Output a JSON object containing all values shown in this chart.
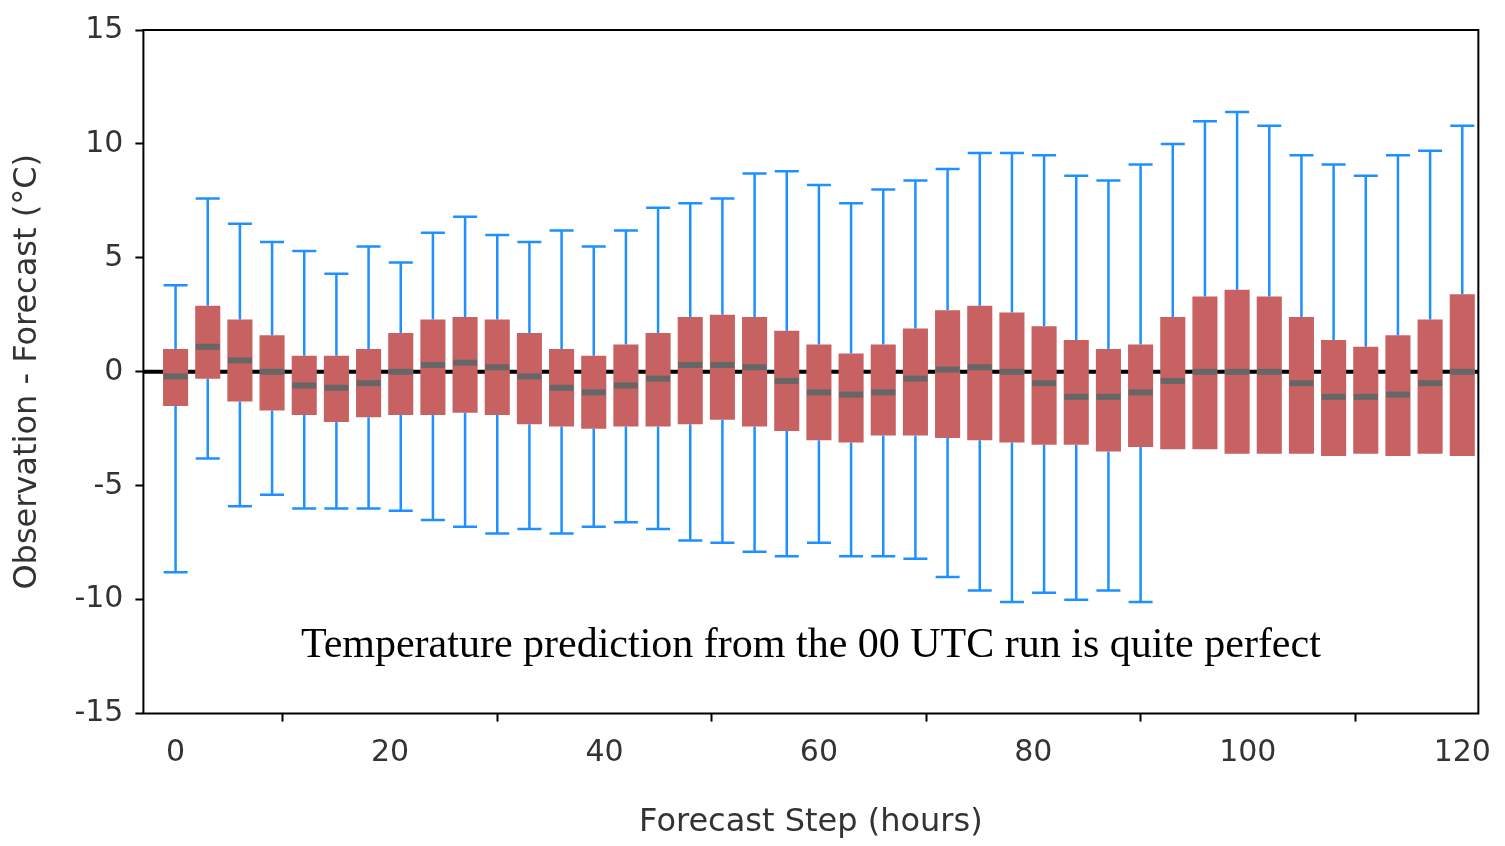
{
  "chart_data": {
    "type": "box",
    "xlabel": "Forecast Step (hours)",
    "ylabel": "Observation - Forecast (°C)",
    "x": [
      0,
      3,
      6,
      9,
      12,
      15,
      18,
      21,
      24,
      27,
      30,
      33,
      36,
      39,
      42,
      45,
      48,
      51,
      54,
      57,
      60,
      63,
      66,
      69,
      72,
      75,
      78,
      81,
      84,
      87,
      90,
      93,
      96,
      99,
      102,
      105,
      108,
      111,
      114,
      117,
      120
    ],
    "xlim": [
      -3,
      121.5
    ],
    "xticks": [
      0,
      20,
      40,
      60,
      80,
      100,
      120
    ],
    "ylim": [
      -15,
      15
    ],
    "yticks": [
      -15,
      -10,
      -5,
      0,
      5,
      10,
      15
    ],
    "color": "#c86262",
    "legend": false,
    "ref_lines": [
      {
        "axis": "y",
        "value": 0,
        "color": "#000000"
      }
    ],
    "annotations": [
      "Temperature prediction from the 00 UTC run is quite perfect"
    ],
    "boxes": [
      {
        "low": -8.8,
        "q1": -1.5,
        "median": -0.2,
        "q3": 1.0,
        "high": 3.8
      },
      {
        "low": -3.8,
        "q1": -0.3,
        "median": 1.1,
        "q3": 2.9,
        "high": 7.6
      },
      {
        "low": -5.9,
        "q1": -1.3,
        "median": 0.5,
        "q3": 2.3,
        "high": 6.5
      },
      {
        "low": -5.4,
        "q1": -1.7,
        "median": 0,
        "q3": 1.6,
        "high": 5.7
      },
      {
        "low": -6.0,
        "q1": -1.9,
        "median": -0.6,
        "q3": 0.7,
        "high": 5.3
      },
      {
        "low": -6.0,
        "q1": -2.2,
        "median": -0.7,
        "q3": 0.7,
        "high": 4.3
      },
      {
        "low": -6.0,
        "q1": -2.0,
        "median": -0.5,
        "q3": 1.0,
        "high": 5.5
      },
      {
        "low": -6.1,
        "q1": -1.9,
        "median": 0,
        "q3": 1.7,
        "high": 4.8
      },
      {
        "low": -6.5,
        "q1": -1.9,
        "median": 0.3,
        "q3": 2.3,
        "high": 6.1
      },
      {
        "low": -6.8,
        "q1": -1.8,
        "median": 0.4,
        "q3": 2.4,
        "high": 6.8
      },
      {
        "low": -7.1,
        "q1": -1.9,
        "median": 0.2,
        "q3": 2.3,
        "high": 6.0
      },
      {
        "low": -6.9,
        "q1": -2.3,
        "median": -0.2,
        "q3": 1.7,
        "high": 5.7
      },
      {
        "low": -7.1,
        "q1": -2.4,
        "median": -0.7,
        "q3": 1.0,
        "high": 6.2
      },
      {
        "low": -6.8,
        "q1": -2.5,
        "median": -0.9,
        "q3": 0.7,
        "high": 5.5
      },
      {
        "low": -6.6,
        "q1": -2.4,
        "median": -0.6,
        "q3": 1.2,
        "high": 6.2
      },
      {
        "low": -6.9,
        "q1": -2.4,
        "median": -0.3,
        "q3": 1.7,
        "high": 7.2
      },
      {
        "low": -7.4,
        "q1": -2.3,
        "median": 0.3,
        "q3": 2.4,
        "high": 7.4
      },
      {
        "low": -7.5,
        "q1": -2.1,
        "median": 0.3,
        "q3": 2.5,
        "high": 7.6
      },
      {
        "low": -7.9,
        "q1": -2.4,
        "median": 0.2,
        "q3": 2.4,
        "high": 8.7
      },
      {
        "low": -8.1,
        "q1": -2.6,
        "median": -0.4,
        "q3": 1.8,
        "high": 8.8
      },
      {
        "low": -7.5,
        "q1": -3.0,
        "median": -0.9,
        "q3": 1.2,
        "high": 8.2
      },
      {
        "low": -8.1,
        "q1": -3.1,
        "median": -1.0,
        "q3": 0.8,
        "high": 7.4
      },
      {
        "low": -8.1,
        "q1": -2.8,
        "median": -0.9,
        "q3": 1.2,
        "high": 8.0
      },
      {
        "low": -8.2,
        "q1": -2.8,
        "median": -0.3,
        "q3": 1.9,
        "high": 8.4
      },
      {
        "low": -9.0,
        "q1": -2.9,
        "median": 0.1,
        "q3": 2.7,
        "high": 8.9
      },
      {
        "low": -9.6,
        "q1": -3.0,
        "median": 0.2,
        "q3": 2.9,
        "high": 9.6
      },
      {
        "low": -10.1,
        "q1": -3.1,
        "median": 0,
        "q3": 2.6,
        "high": 9.6
      },
      {
        "low": -9.7,
        "q1": -3.2,
        "median": -0.5,
        "q3": 2.0,
        "high": 9.5
      },
      {
        "low": -10.0,
        "q1": -3.2,
        "median": -1.1,
        "q3": 1.4,
        "high": 8.6
      },
      {
        "low": -9.6,
        "q1": -3.5,
        "median": -1.1,
        "q3": 1.0,
        "high": 8.4
      },
      {
        "low": -10.1,
        "q1": -3.3,
        "median": -0.9,
        "q3": 1.2,
        "high": 9.1
      },
      {
        "low": null,
        "q1": -3.4,
        "median": -0.4,
        "q3": 2.4,
        "high": 10.0
      },
      {
        "low": null,
        "q1": -3.4,
        "median": 0,
        "q3": 3.3,
        "high": 11.0
      },
      {
        "low": null,
        "q1": -3.6,
        "median": 0,
        "q3": 3.6,
        "high": 11.4
      },
      {
        "low": null,
        "q1": -3.6,
        "median": 0,
        "q3": 3.3,
        "high": 10.8
      },
      {
        "low": null,
        "q1": -3.6,
        "median": -0.5,
        "q3": 2.4,
        "high": 9.5
      },
      {
        "low": null,
        "q1": -3.7,
        "median": -1.1,
        "q3": 1.4,
        "high": 9.1
      },
      {
        "low": null,
        "q1": -3.6,
        "median": -1.1,
        "q3": 1.1,
        "high": 8.6
      },
      {
        "low": null,
        "q1": -3.7,
        "median": -1.0,
        "q3": 1.6,
        "high": 9.5
      },
      {
        "low": null,
        "q1": -3.6,
        "median": -0.5,
        "q3": 2.3,
        "high": 9.7
      },
      {
        "low": null,
        "q1": -3.7,
        "median": 0,
        "q3": 3.4,
        "high": 10.8
      }
    ]
  }
}
